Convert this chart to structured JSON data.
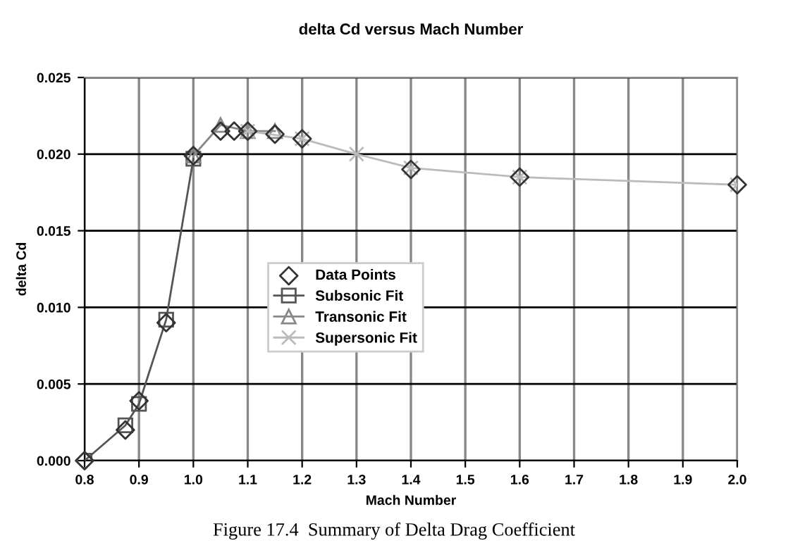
{
  "chart_data": {
    "type": "line",
    "title": "delta Cd versus Mach Number",
    "xlabel": "Mach Number",
    "ylabel": "delta Cd",
    "xlim": [
      0.8,
      2.0
    ],
    "xticks": [
      {
        "value": 0.8,
        "label": "0.8"
      },
      {
        "value": 0.9,
        "label": "0.9"
      },
      {
        "value": 1.0,
        "label": "1.0"
      },
      {
        "value": 1.1,
        "label": "1.1"
      },
      {
        "value": 1.2,
        "label": "1.2"
      },
      {
        "value": 1.3,
        "label": "1.3"
      },
      {
        "value": 1.4,
        "label": "1.4"
      },
      {
        "value": 1.5,
        "label": "1.5"
      },
      {
        "value": 1.6,
        "label": "1.6"
      },
      {
        "value": 1.7,
        "label": "1.7"
      },
      {
        "value": 1.8,
        "label": "1.8"
      },
      {
        "value": 1.9,
        "label": "1.9"
      },
      {
        "value": 2.0,
        "label": "2.0"
      }
    ],
    "ylim": [
      0,
      0.025
    ],
    "yticks": [
      {
        "value": 0,
        "label": "0.000"
      },
      {
        "value": 0.005,
        "label": "0.005"
      },
      {
        "value": 0.01,
        "label": "0.010"
      },
      {
        "value": 0.015,
        "label": "0.015"
      },
      {
        "value": 0.02,
        "label": "0.020"
      },
      {
        "value": 0.025,
        "label": "0.025"
      }
    ],
    "grid": true,
    "legend": "center",
    "series": [
      {
        "name": "Data Points",
        "type": "scatter",
        "marker": "diamond",
        "color": "#333333",
        "x": [
          0.8,
          0.875,
          0.9,
          0.95,
          1.0,
          1.05,
          1.075,
          1.1,
          1.15,
          1.2,
          1.4,
          1.6,
          2.0
        ],
        "values": [
          0,
          0.002,
          0.0039,
          0.009,
          0.0199,
          0.0215,
          0.0215,
          0.0215,
          0.0213,
          0.021,
          0.019,
          0.0185,
          0.018
        ]
      },
      {
        "name": "Subsonic Fit",
        "marker": "square",
        "color": "#555555",
        "x": [
          0.8,
          0.875,
          0.9,
          0.95,
          1.0
        ],
        "values": [
          0,
          0.0023,
          0.0037,
          0.0092,
          0.0197
        ]
      },
      {
        "name": "Transonic Fit",
        "marker": "triangle",
        "color": "#888888",
        "x": [
          1.0,
          1.05,
          1.1,
          1.15
        ],
        "values": [
          0.0199,
          0.0219,
          0.0215,
          0.0215
        ]
      },
      {
        "name": "Supersonic Fit",
        "marker": "cross",
        "color": "#bbbbbb",
        "x": [
          1.1,
          1.2,
          1.3,
          1.4,
          1.6,
          2.0
        ],
        "values": [
          0.0215,
          0.021,
          0.02,
          0.0191,
          0.0185,
          0.018
        ]
      }
    ],
    "annotations": [
      "Figure 17.4  Summary of Delta Drag Coefficient"
    ]
  }
}
